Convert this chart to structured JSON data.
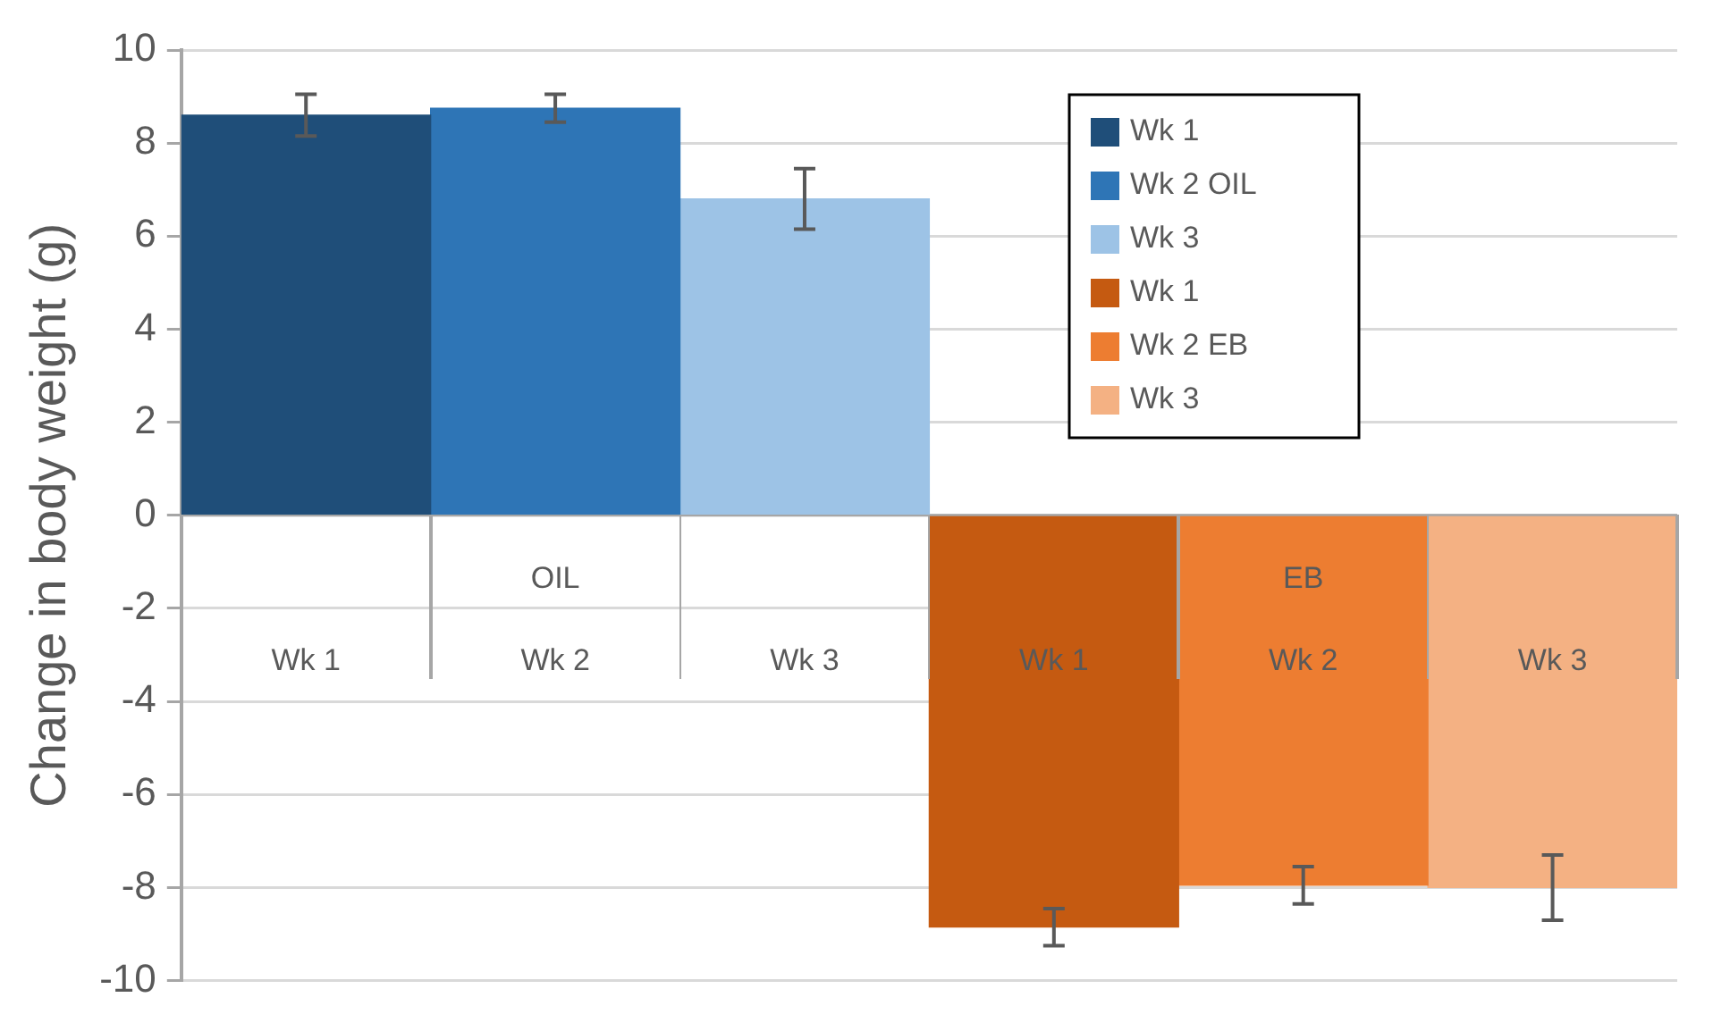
{
  "chart_data": {
    "type": "bar",
    "ylabel": "Change in body weight (g)",
    "categories": [
      "Wk 1",
      "Wk 2",
      "Wk 3",
      "Wk 1",
      "Wk 2",
      "Wk 3"
    ],
    "annotations": [
      "OIL",
      "EB"
    ],
    "series": [
      {
        "name": "Wk 1",
        "color": "#1f4e79",
        "values": [
          8.6,
          null,
          null,
          null,
          null,
          null
        ],
        "errors": [
          0.45,
          null,
          null,
          null,
          null,
          null
        ]
      },
      {
        "name": "Wk 2 OIL",
        "color": "#2e75b6",
        "values": [
          null,
          8.75,
          null,
          null,
          null,
          null
        ],
        "errors": [
          null,
          0.3,
          null,
          null,
          null,
          null
        ]
      },
      {
        "name": "Wk 3",
        "color": "#9dc3e6",
        "values": [
          null,
          null,
          6.8,
          null,
          null,
          null
        ],
        "errors": [
          null,
          null,
          0.65,
          null,
          null,
          null
        ]
      },
      {
        "name": "Wk 1",
        "color": "#c55a11",
        "values": [
          null,
          null,
          null,
          -8.85,
          null,
          null
        ],
        "errors": [
          null,
          null,
          null,
          0.4,
          null,
          null
        ]
      },
      {
        "name": "Wk 2 EB",
        "color": "#ed7d31",
        "values": [
          null,
          null,
          null,
          null,
          -7.95,
          null
        ],
        "errors": [
          null,
          null,
          null,
          null,
          0.4,
          null
        ]
      },
      {
        "name": "Wk 3",
        "color": "#f4b183",
        "values": [
          null,
          null,
          null,
          null,
          null,
          -8.0
        ],
        "errors": [
          null,
          null,
          null,
          null,
          null,
          0.7
        ]
      }
    ],
    "ylim": [
      -10,
      10
    ],
    "yticks": [
      -10,
      -8,
      -6,
      -4,
      -2,
      0,
      2,
      4,
      6,
      8,
      10
    ],
    "grid": "y",
    "legend": "top right"
  }
}
